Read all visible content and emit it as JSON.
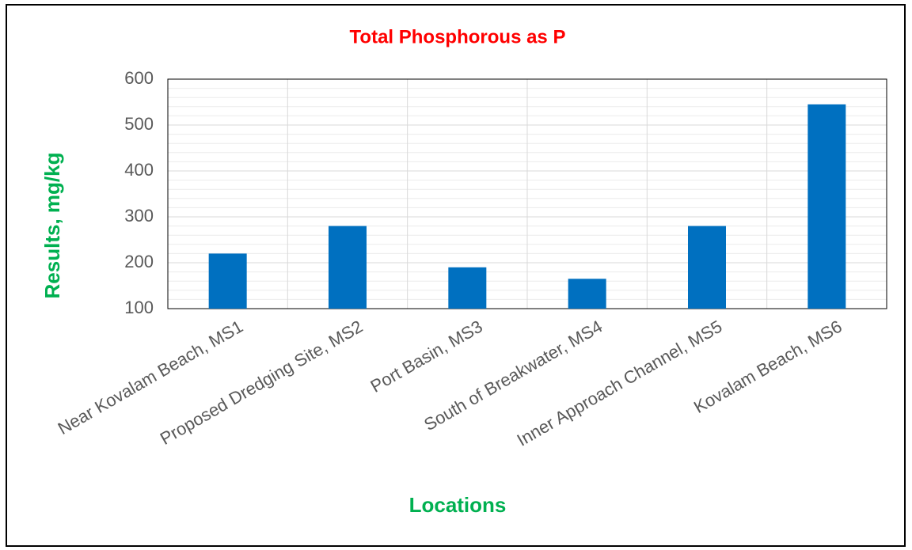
{
  "chart_data": {
    "type": "bar",
    "title": "Total Phosphorous as P",
    "x_label": "Locations",
    "y_label": "Results, mg/kg",
    "categories": [
      "Near Kovalam Beach, MS1",
      "Proposed Dredging Site, MS2",
      "Port Basin, MS3",
      "South of Breakwater, MS4",
      "Inner Approach Channel, MS5",
      "Kovalam Beach, MS6"
    ],
    "values": [
      220,
      280,
      190,
      165,
      280,
      545
    ],
    "color": "#0070c0",
    "ylim": [
      100,
      600
    ],
    "yticks": [
      100,
      200,
      300,
      400,
      500,
      600
    ],
    "grid": true,
    "minor_grid_step": 20
  }
}
